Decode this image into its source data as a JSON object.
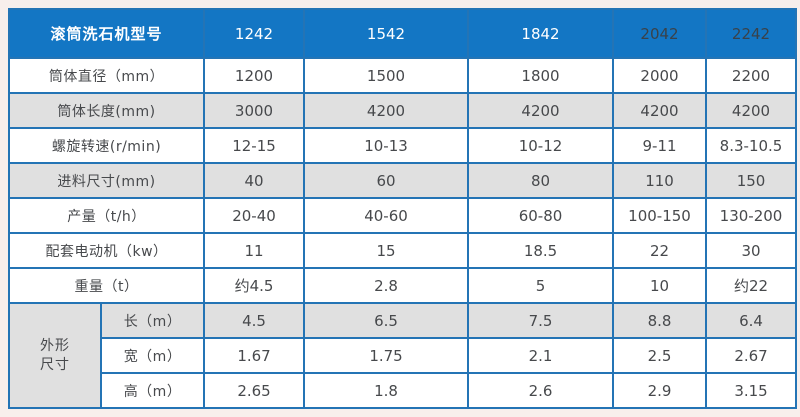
{
  "page": {
    "background": "#f8efec"
  },
  "table": {
    "colors": {
      "header_bg": "#1376c4",
      "header_text_light": "#ffffff",
      "header_text_dark": "#39424a",
      "border_blue": "#2474b5",
      "row_gray": "#e0e0e0",
      "row_white": "#ffffff",
      "body_text": "#47494c"
    },
    "header": {
      "label": "滚筒洗石机型号",
      "models": [
        {
          "label": "1242",
          "dark": false
        },
        {
          "label": "1542",
          "dark": false
        },
        {
          "label": "1842",
          "dark": false
        },
        {
          "label": "2042",
          "dark": true
        },
        {
          "label": "2242",
          "dark": true
        }
      ]
    },
    "rows": [
      {
        "label": "筒体直径（mm）",
        "shade": "white",
        "values": [
          "1200",
          "1500",
          "1800",
          "2000",
          "2200"
        ]
      },
      {
        "label": "筒体长度(mm)",
        "shade": "gray",
        "values": [
          "3000",
          "4200",
          "4200",
          "4200",
          "4200"
        ]
      },
      {
        "label": "螺旋转速(r/min)",
        "shade": "white",
        "values": [
          "12-15",
          "10-13",
          "10-12",
          "9-11",
          "8.3-10.5"
        ]
      },
      {
        "label": "进料尺寸(mm)",
        "shade": "gray",
        "values": [
          "40",
          "60",
          "80",
          "110",
          "150"
        ]
      },
      {
        "label": "产量（t/h）",
        "shade": "white",
        "values": [
          "20-40",
          "40-60",
          "60-80",
          "100-150",
          "130-200"
        ]
      },
      {
        "label": "配套电动机（kw）",
        "shade": "white",
        "values": [
          "11",
          "15",
          "18.5",
          "22",
          "30"
        ]
      },
      {
        "label": "重量（t）",
        "shade": "white",
        "values": [
          "约4.5",
          "2.8",
          "5",
          "10",
          "约22"
        ]
      }
    ],
    "dimension_group": {
      "label_line1": "外形",
      "label_line2": "尺寸",
      "rows": [
        {
          "label": "长（m）",
          "shade": "gray",
          "values": [
            "4.5",
            "6.5",
            "7.5",
            "8.8",
            "6.4"
          ]
        },
        {
          "label": "宽（m）",
          "shade": "white",
          "values": [
            "1.67",
            "1.75",
            "2.1",
            "2.5",
            "2.67"
          ]
        },
        {
          "label": "高（m）",
          "shade": "white",
          "values": [
            "2.65",
            "1.8",
            "2.6",
            "2.9",
            "3.15"
          ]
        }
      ]
    }
  },
  "chart_data": {
    "type": "table",
    "title": "滚筒洗石机型号",
    "columns": [
      "滚筒洗石机型号",
      "1242",
      "1542",
      "1842",
      "2042",
      "2242"
    ],
    "rows": [
      [
        "筒体直径（mm）",
        "1200",
        "1500",
        "1800",
        "2000",
        "2200"
      ],
      [
        "筒体长度(mm)",
        "3000",
        "4200",
        "4200",
        "4200",
        "4200"
      ],
      [
        "螺旋转速(r/min)",
        "12-15",
        "10-13",
        "10-12",
        "9-11",
        "8.3-10.5"
      ],
      [
        "进料尺寸(mm)",
        "40",
        "60",
        "80",
        "110",
        "150"
      ],
      [
        "产量（t/h）",
        "20-40",
        "40-60",
        "60-80",
        "100-150",
        "130-200"
      ],
      [
        "配套电动机（kw）",
        "11",
        "15",
        "18.5",
        "22",
        "30"
      ],
      [
        "重量（t）",
        "约4.5",
        "2.8",
        "5",
        "10",
        "约22"
      ],
      [
        "外形尺寸 长（m）",
        "4.5",
        "6.5",
        "7.5",
        "8.8",
        "6.4"
      ],
      [
        "外形尺寸 宽（m）",
        "1.67",
        "1.75",
        "2.1",
        "2.5",
        "2.67"
      ],
      [
        "外形尺寸 高（m）",
        "2.65",
        "1.8",
        "2.6",
        "2.9",
        "3.15"
      ]
    ]
  }
}
